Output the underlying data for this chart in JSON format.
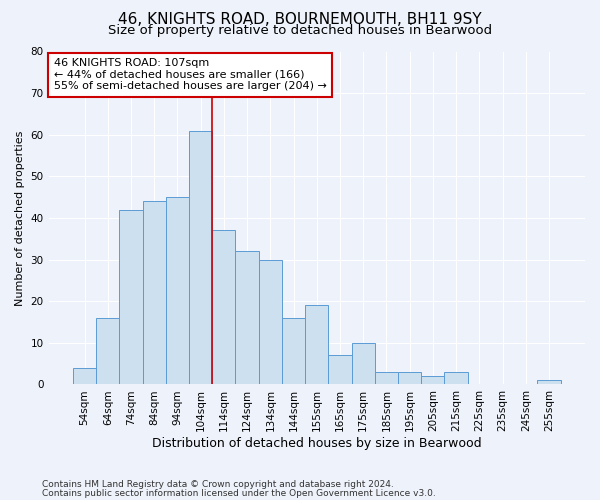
{
  "title1": "46, KNIGHTS ROAD, BOURNEMOUTH, BH11 9SY",
  "title2": "Size of property relative to detached houses in Bearwood",
  "xlabel": "Distribution of detached houses by size in Bearwood",
  "ylabel": "Number of detached properties",
  "bar_labels": [
    "54sqm",
    "64sqm",
    "74sqm",
    "84sqm",
    "94sqm",
    "104sqm",
    "114sqm",
    "124sqm",
    "134sqm",
    "144sqm",
    "155sqm",
    "165sqm",
    "175sqm",
    "185sqm",
    "195sqm",
    "205sqm",
    "215sqm",
    "225sqm",
    "235sqm",
    "245sqm",
    "255sqm"
  ],
  "bar_values": [
    4,
    16,
    42,
    44,
    45,
    61,
    37,
    32,
    30,
    16,
    19,
    7,
    10,
    3,
    3,
    2,
    3,
    0,
    0,
    0,
    1
  ],
  "bar_color": "#cce0f0",
  "bar_edge_color": "#5b9bd5",
  "bar_width": 1.0,
  "ylim": [
    0,
    80
  ],
  "yticks": [
    0,
    10,
    20,
    30,
    40,
    50,
    60,
    70,
    80
  ],
  "vline_color": "#cc0000",
  "vline_position": 5.5,
  "annotation_text": "46 KNIGHTS ROAD: 107sqm\n← 44% of detached houses are smaller (166)\n55% of semi-detached houses are larger (204) →",
  "annotation_box_color": "#ffffff",
  "annotation_box_edge": "#cc0000",
  "footer1": "Contains HM Land Registry data © Crown copyright and database right 2024.",
  "footer2": "Contains public sector information licensed under the Open Government Licence v3.0.",
  "bg_color": "#eef2fa",
  "plot_bg_color": "#eef2fa",
  "grid_color": "#ffffff",
  "title1_fontsize": 11,
  "title2_fontsize": 9.5,
  "xlabel_fontsize": 9,
  "ylabel_fontsize": 8,
  "tick_fontsize": 7.5,
  "annotation_fontsize": 8,
  "footer_fontsize": 6.5
}
